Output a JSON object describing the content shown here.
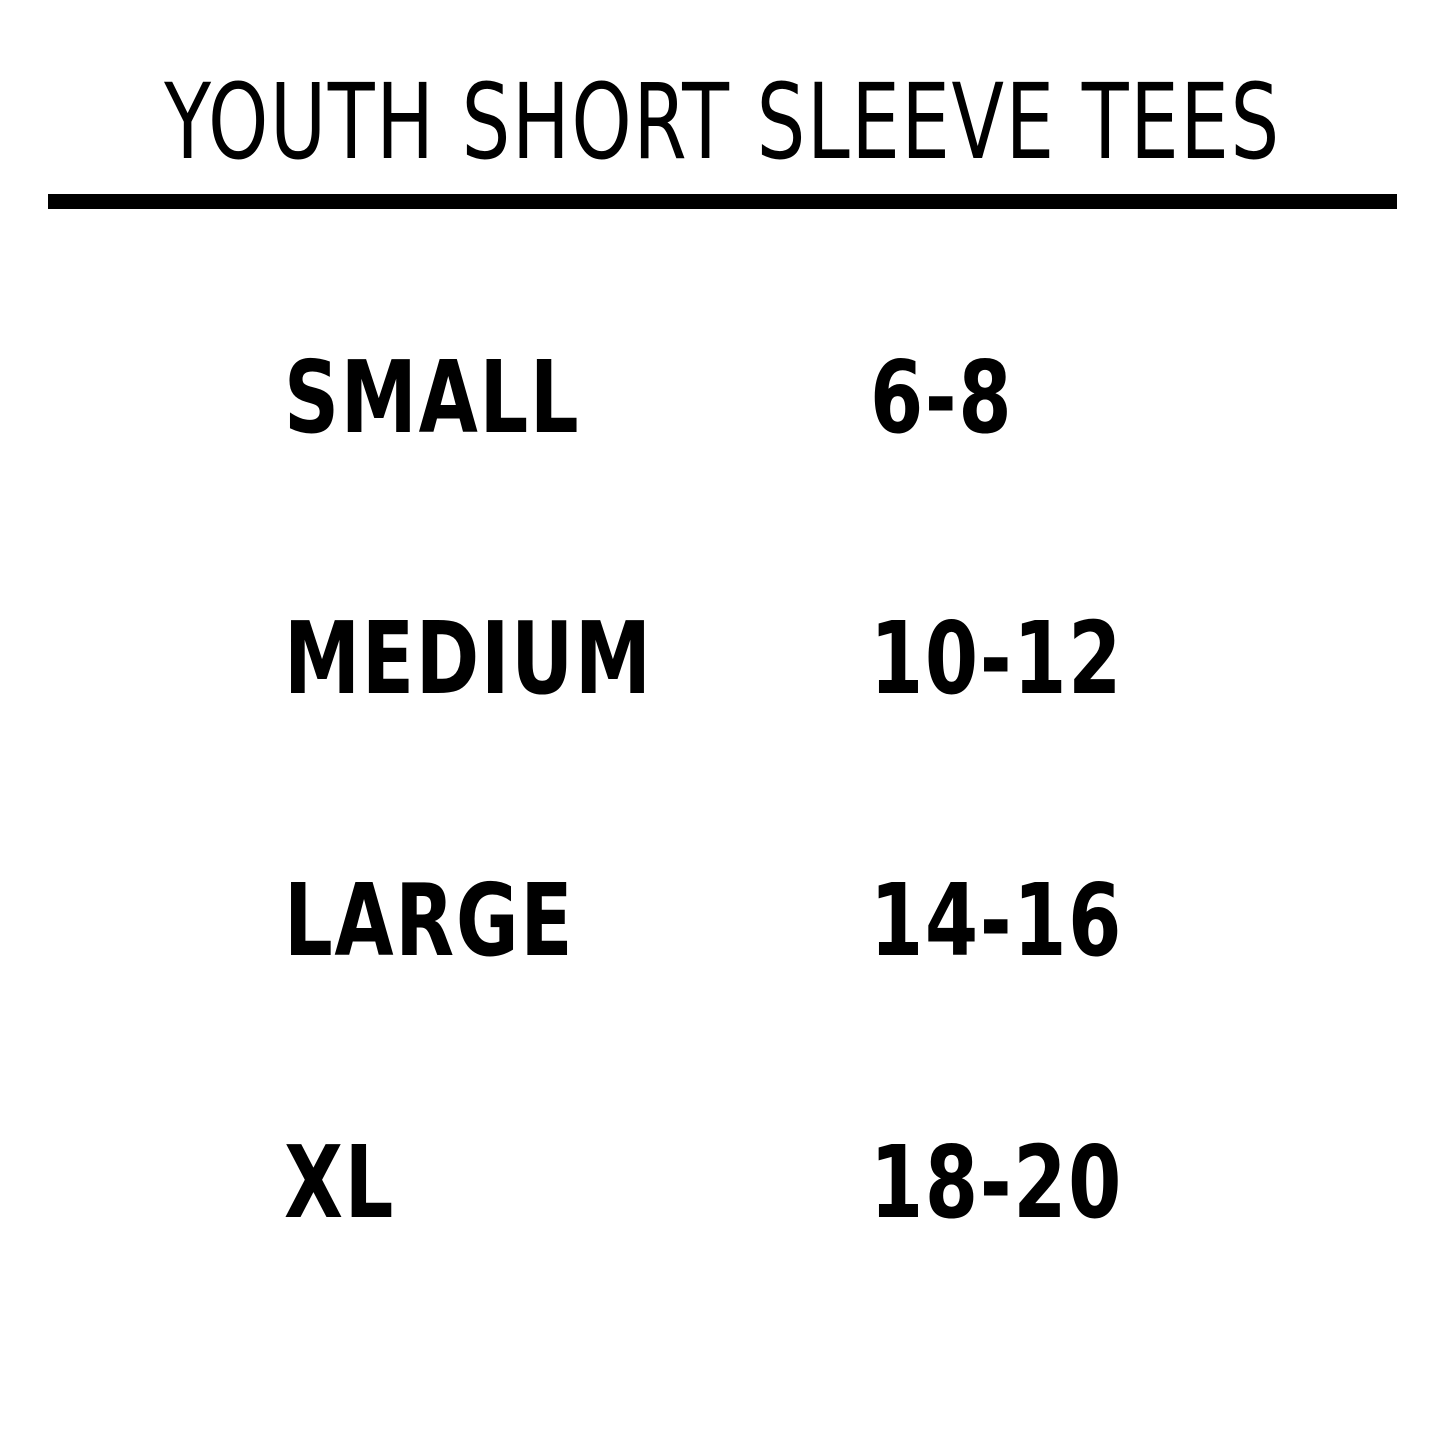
{
  "header": {
    "title": "YOUTH SHORT SLEEVE TEES"
  },
  "table": {
    "rows": [
      [
        "SMALL",
        "6-8"
      ],
      [
        "MEDIUM",
        "10-12"
      ],
      [
        "LARGE",
        "14-16"
      ],
      [
        "XL",
        "18-20"
      ]
    ]
  }
}
